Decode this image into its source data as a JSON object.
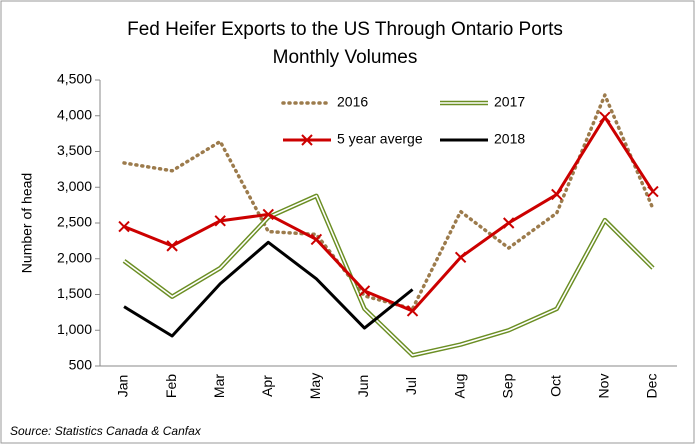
{
  "chart_data": {
    "type": "line",
    "title": [
      "Fed Heifer Exports to the US Through Ontario Ports",
      "Monthly Volumes"
    ],
    "ylabel": "Number of head",
    "source": "Source: Statistics Canada & Canfax",
    "categories": [
      "Jan",
      "Feb",
      "Mar",
      "Apr",
      "May",
      "Jun",
      "Jul",
      "Aug",
      "Sep",
      "Oct",
      "Nov",
      "Dec"
    ],
    "series": [
      {
        "name": "2016",
        "color": "#9c7b4c",
        "style": "dotted",
        "values": [
          3340,
          3230,
          3640,
          2380,
          2340,
          1480,
          1300,
          2660,
          2150,
          2640,
          4290,
          2700
        ]
      },
      {
        "name": "2017",
        "color": "#6b8e23",
        "style": "double",
        "values": [
          1970,
          1470,
          1870,
          2580,
          2880,
          1300,
          650,
          800,
          1000,
          1300,
          2540,
          1870
        ]
      },
      {
        "name": "5 year averge",
        "color": "#cc0000",
        "style": "solid",
        "marker": "x",
        "values": [
          2450,
          2180,
          2530,
          2620,
          2270,
          1550,
          1270,
          2020,
          2500,
          2900,
          3980,
          2940
        ]
      },
      {
        "name": "2018",
        "color": "#000000",
        "style": "solid",
        "values": [
          1330,
          920,
          1650,
          2230,
          1720,
          1030,
          1570,
          null,
          null,
          null,
          null,
          null
        ]
      }
    ],
    "ylim": [
      500,
      4500
    ],
    "yticks": [
      500,
      {
        "value": 1000,
        "label": "1,000"
      },
      {
        "value": 1500,
        "label": "1,500"
      },
      {
        "value": 2000,
        "label": "2,000"
      },
      {
        "value": 2500,
        "label": "2,500"
      },
      {
        "value": 3000,
        "label": "3,000"
      },
      {
        "value": 3500,
        "label": "3,500"
      },
      {
        "value": 4000,
        "label": "4,000"
      },
      {
        "value": 4500,
        "label": "4,500"
      }
    ],
    "grid": false
  }
}
